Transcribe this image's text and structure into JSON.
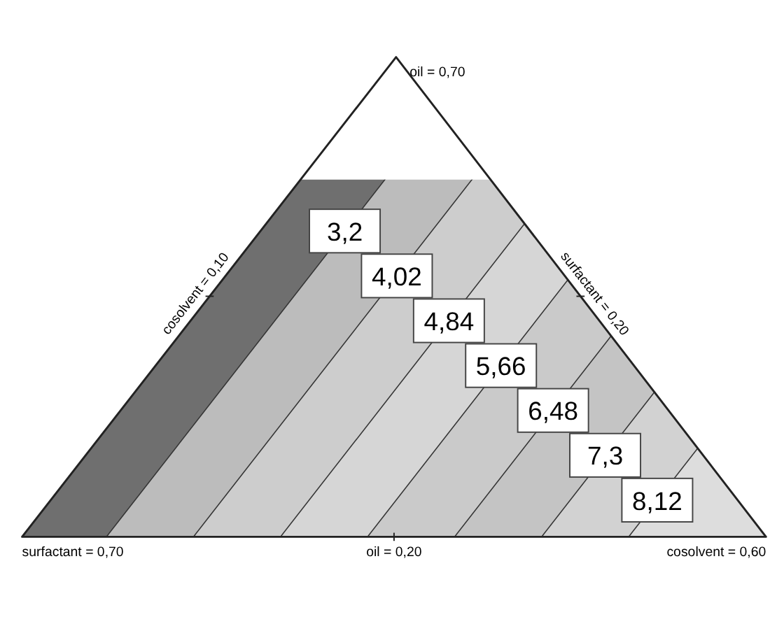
{
  "chart_data": {
    "type": "other",
    "values": [
      3.2,
      4.02,
      4.84,
      5.66,
      6.48,
      7.3,
      8.12
    ],
    "value_labels": [
      "3,2",
      "4,02",
      "4,84",
      "5,66",
      "6,48",
      "7,3",
      "8,12"
    ],
    "colors": [
      "#6f6f6f",
      "#bcbcbc",
      "#cdcdcd",
      "#d6d6d6",
      "#cacaca",
      "#c4c4c4",
      "#d2d2d2"
    ],
    "annotations": [
      "oil = 0,70",
      "cosolvent = 0,10",
      "surfactant = 0,20",
      "surfactant = 0,70",
      "oil = 0,20",
      "cosolvent = 0,60"
    ]
  }
}
